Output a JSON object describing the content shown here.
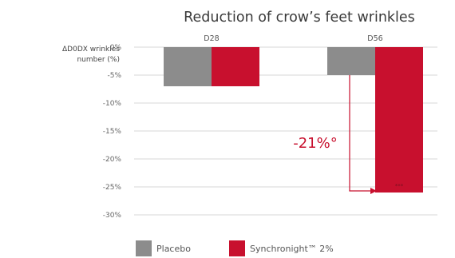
{
  "chart_data": {
    "type": "bar",
    "title": "Reduction of crow’s feet wrinkles",
    "ylabel_lines": [
      "ΔD0DX wrinkles",
      "number (%)"
    ],
    "categories": [
      "D28",
      "D56"
    ],
    "yticks": [
      0,
      -5,
      -10,
      -15,
      -20,
      -25,
      -30
    ],
    "ytick_labels": [
      "0%",
      "-5%",
      "-10%",
      "-15%",
      "-20%",
      "-25%",
      "-30%"
    ],
    "ylim": [
      -30,
      0
    ],
    "grid": true,
    "legend_position": "bottom",
    "series": [
      {
        "name": "Placebo",
        "values": [
          -7,
          -5
        ],
        "color": "#8c8c8c"
      },
      {
        "name": "Synchronight™ 2%",
        "values": [
          -7,
          -26
        ],
        "color": "#c8102e"
      }
    ],
    "annotation": {
      "text": "-21%°",
      "significance": "***",
      "color": "#c8102e"
    }
  }
}
